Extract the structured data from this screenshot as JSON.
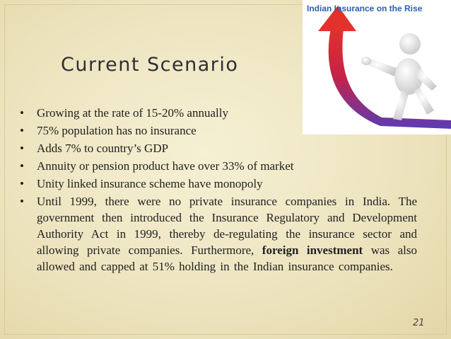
{
  "slide": {
    "title": "Current Scenario",
    "image_caption": "Indian Insurance on the Rise",
    "bullets": [
      "Growing at the rate of 15-20% annually",
      "75% population has no insurance",
      " Adds 7% to country’s GDP",
      "Annuity or pension product have over 33% of market",
      "Unity linked insurance scheme have monopoly"
    ],
    "long_bullet": {
      "part1": " Until 1999, there were no private insurance companies in India. The government then introduced the Insurance Regulatory and Development Authority Act in 1999, thereby de-regulating the insurance sector and allowing private companies. Furthermore, ",
      "highlight": "foreign investment",
      "part2": " was also allowed and capped at 51% holding in the Indian insurance companies."
    },
    "page_number": "21"
  }
}
